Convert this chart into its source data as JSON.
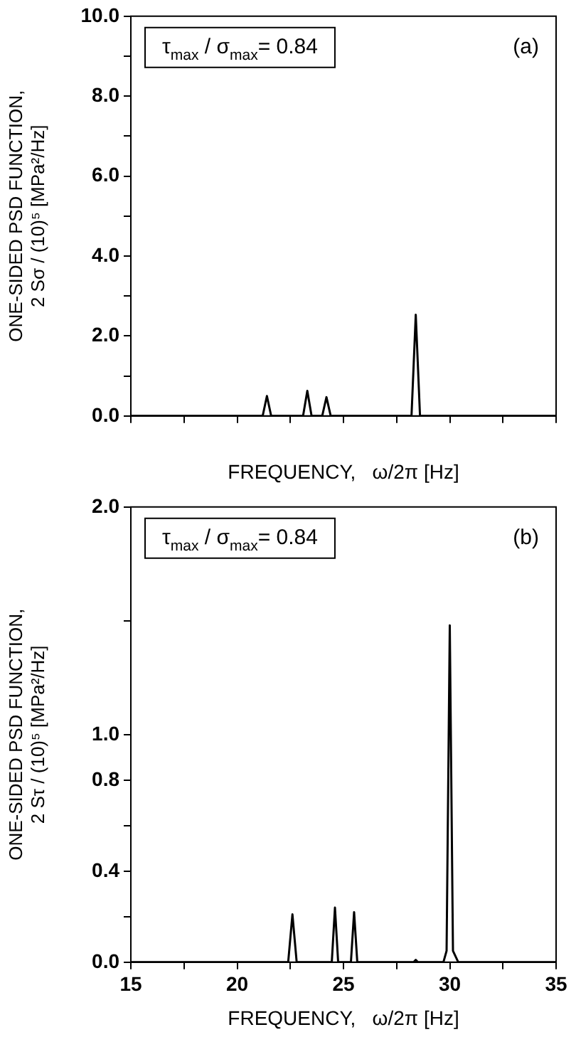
{
  "chart_data": [
    {
      "type": "line",
      "color": "#000000",
      "marker": "none",
      "grid": false,
      "tick_labels": "y",
      "x": [
        15,
        21.2,
        21.4,
        21.6,
        23.1,
        23.3,
        23.5,
        24.0,
        24.2,
        24.4,
        28.2,
        28.4,
        28.6,
        35
      ],
      "values": [
        0,
        0,
        0.5,
        0,
        0,
        0.63,
        0,
        0,
        0.47,
        0,
        0,
        2.53,
        0,
        0
      ],
      "xlim": [
        15,
        35
      ],
      "xticks": [
        15,
        {
          "value": 17.5,
          "label": null
        },
        20,
        {
          "value": 22.5,
          "label": null
        },
        25,
        {
          "value": 27.5,
          "label": null
        },
        30,
        {
          "value": 32.5,
          "label": null
        },
        35
      ],
      "ylim": [
        0,
        10
      ],
      "yticks": [
        {
          "value": 0,
          "label": "0.0"
        },
        {
          "value": 1,
          "label": null
        },
        {
          "value": 2,
          "label": "2.0"
        },
        {
          "value": 3,
          "label": null
        },
        {
          "value": 4,
          "label": "4.0"
        },
        {
          "value": 5,
          "label": null
        },
        {
          "value": 6,
          "label": "6.0"
        },
        {
          "value": 7,
          "label": null
        },
        {
          "value": 8,
          "label": "8.0"
        },
        {
          "value": 9,
          "label": null
        },
        {
          "value": 10,
          "label": "10.0"
        }
      ],
      "xlabel": "FREQUENCY,   ω/2π [Hz]",
      "ylabel": "ONE-SIDED PSD FUNCTION,\n2 Sσ / (10)⁵ [MPa²/Hz]",
      "annotations": [
        "τ$_{max}$ / σ$_{max}$= 0.84",
        "(a)"
      ]
    },
    {
      "type": "line",
      "color": "#000000",
      "marker": "none",
      "grid": false,
      "x": [
        15,
        22.4,
        22.6,
        22.8,
        24.45,
        24.6,
        24.75,
        25.35,
        25.5,
        25.65,
        28.3,
        28.4,
        28.5,
        29.7,
        29.85,
        30.0,
        30.15,
        30.4,
        35
      ],
      "values": [
        0,
        0,
        0.21,
        0,
        0,
        0.24,
        0,
        0,
        0.22,
        0,
        0,
        0.01,
        0,
        0,
        0.05,
        1.48,
        0.05,
        0,
        0
      ],
      "xlim": [
        15,
        35
      ],
      "xticks": [
        15,
        {
          "value": 17.5,
          "label": null
        },
        20,
        {
          "value": 22.5,
          "label": null
        },
        25,
        {
          "value": 27.5,
          "label": null
        },
        30,
        {
          "value": 32.5,
          "label": null
        },
        35
      ],
      "ylim": [
        0,
        2.0
      ],
      "yticks": [
        {
          "value": 0,
          "label": "0.0"
        },
        {
          "value": 0.2,
          "label": null
        },
        {
          "value": 0.4,
          "label": "0.4"
        },
        {
          "value": 0.6,
          "label": null
        },
        {
          "value": 0.8,
          "label": "0.8"
        },
        {
          "value": 1.0,
          "label": "1.0"
        },
        {
          "value": 1.5,
          "label": null
        },
        {
          "value": 2.0,
          "label": "2.0"
        }
      ],
      "xlabel": "FREQUENCY,   ω/2π [Hz]",
      "ylabel": "ONE-SIDED PSD FUNCTION,\n2 Sτ / (10)⁵ [MPa²/Hz]",
      "annotations": [
        "τ$_{max}$ / σ$_{max}$= 0.84",
        "(b)"
      ]
    }
  ]
}
